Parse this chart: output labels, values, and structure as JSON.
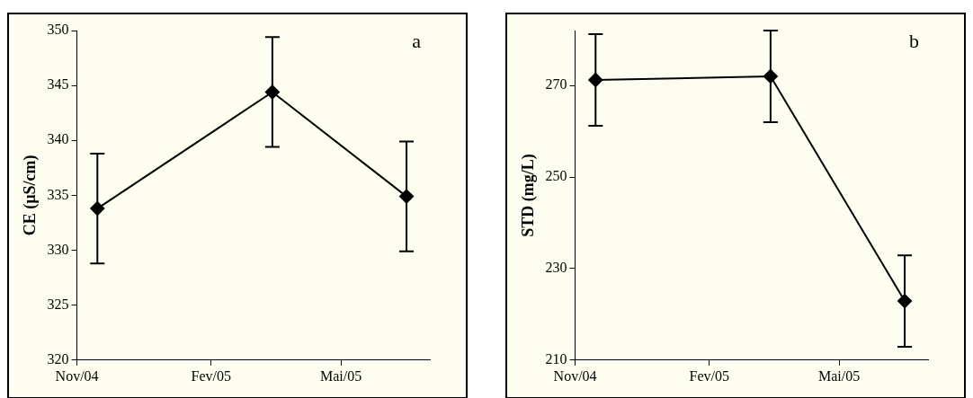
{
  "chart_data": [
    {
      "type": "line",
      "ylabel": "CE (µS/cm)",
      "annotations": [
        "a"
      ],
      "x": [
        "2004-11-15",
        "2005-03-15",
        "2005-06-15"
      ],
      "series": [
        {
          "color": "#000000",
          "values": [
            333.8,
            344.4,
            334.9
          ],
          "errors": [
            5,
            5,
            5
          ]
        }
      ],
      "xlim": [
        "2004-11",
        "2005-07"
      ],
      "xticks": [
        {
          "value": "2004-11",
          "label": "Nov/04"
        },
        {
          "value": "2005-02",
          "label": "Fev/05"
        },
        {
          "value": "2005-05",
          "label": "Mai/05"
        }
      ],
      "ylim": [
        320,
        350
      ],
      "yticks": [
        320,
        325,
        330,
        335,
        340,
        345,
        350
      ],
      "grid": false,
      "legend": false,
      "marker": "diamond",
      "line_style": "solid"
    },
    {
      "type": "line",
      "ylabel": "STD (mg/L)",
      "annotations": [
        "b"
      ],
      "x": [
        "2004-11-15",
        "2005-03-15",
        "2005-06-15"
      ],
      "series": [
        {
          "color": "#000000",
          "values": [
            271.2,
            272.0,
            222.9
          ],
          "errors": [
            10,
            10,
            10
          ]
        }
      ],
      "xlim": [
        "2004-11",
        "2005-07"
      ],
      "xticks": [
        {
          "value": "2004-11",
          "label": "Nov/04"
        },
        {
          "value": "2005-02",
          "label": "Fev/05"
        },
        {
          "value": "2005-05",
          "label": "Mai/05"
        }
      ],
      "ylim": [
        210,
        282
      ],
      "yticks": [
        210,
        230,
        250,
        270
      ],
      "grid": false,
      "legend": false,
      "marker": "diamond",
      "line_style": "solid"
    }
  ]
}
